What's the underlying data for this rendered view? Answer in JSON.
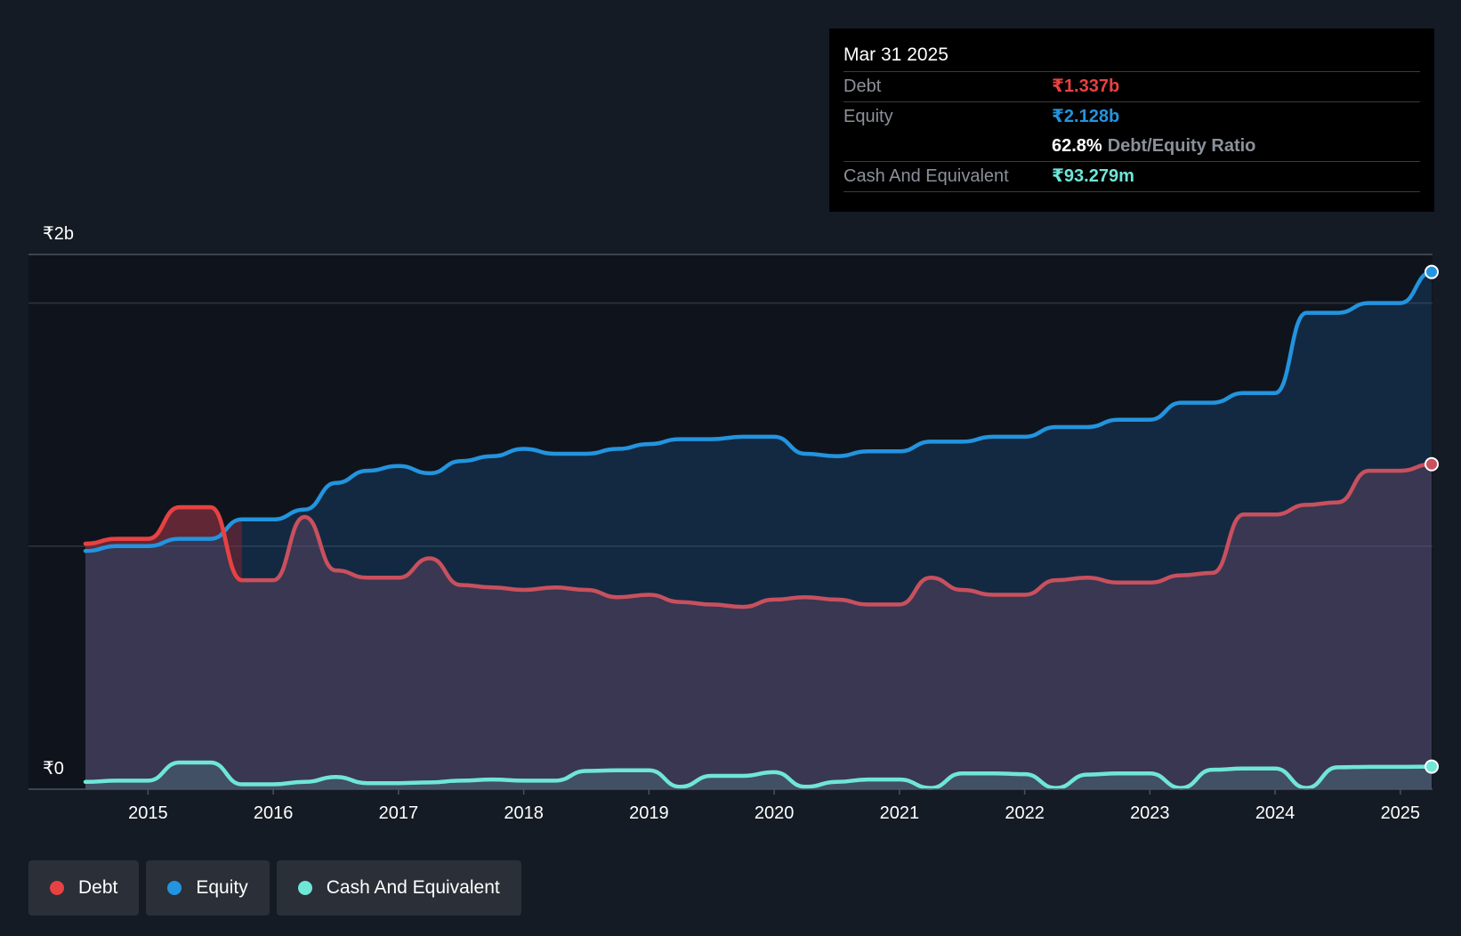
{
  "colors": {
    "background": "#151b24",
    "debt": "#e84142",
    "equity": "#2394df",
    "cash": "#6fe6d6"
  },
  "tooltip": {
    "date": "Mar 31 2025",
    "debt_label": "Debt",
    "debt_value": "₹1.337b",
    "equity_label": "Equity",
    "equity_value": "₹2.128b",
    "ratio_value": "62.8%",
    "ratio_label": "Debt/Equity Ratio",
    "cash_label": "Cash And Equivalent",
    "cash_value": "₹93.279m"
  },
  "legend": [
    {
      "label": "Debt",
      "color": "#e84142"
    },
    {
      "label": "Equity",
      "color": "#2394df"
    },
    {
      "label": "Cash And Equivalent",
      "color": "#6fe6d6"
    }
  ],
  "chart_data": {
    "type": "area",
    "y_unit": "₹ billions",
    "ylim": [
      0,
      2.2
    ],
    "xlim": [
      2014.5,
      2025.25
    ],
    "y_tick_labels": [
      {
        "value": 2.2,
        "label": "₹2b"
      },
      {
        "value": 0,
        "label": "₹0"
      }
    ],
    "gridlines": [
      2.0,
      1.0
    ],
    "x_ticks": [
      "2015",
      "2016",
      "2017",
      "2018",
      "2019",
      "2020",
      "2021",
      "2022",
      "2023",
      "2024",
      "2025"
    ],
    "series": [
      {
        "name": "Debt",
        "points": [
          [
            2014.5,
            1.01
          ],
          [
            2014.75,
            1.03
          ],
          [
            2015.0,
            1.03
          ],
          [
            2015.25,
            1.16
          ],
          [
            2015.5,
            1.16
          ],
          [
            2015.75,
            0.86
          ],
          [
            2016.0,
            0.86
          ],
          [
            2016.25,
            1.12
          ],
          [
            2016.5,
            0.9
          ],
          [
            2016.75,
            0.87
          ],
          [
            2017.0,
            0.87
          ],
          [
            2017.25,
            0.95
          ],
          [
            2017.5,
            0.84
          ],
          [
            2017.75,
            0.83
          ],
          [
            2018.0,
            0.82
          ],
          [
            2018.25,
            0.83
          ],
          [
            2018.5,
            0.82
          ],
          [
            2018.75,
            0.79
          ],
          [
            2019.0,
            0.8
          ],
          [
            2019.25,
            0.77
          ],
          [
            2019.5,
            0.76
          ],
          [
            2019.75,
            0.75
          ],
          [
            2020.0,
            0.78
          ],
          [
            2020.25,
            0.79
          ],
          [
            2020.5,
            0.78
          ],
          [
            2020.75,
            0.76
          ],
          [
            2021.0,
            0.76
          ],
          [
            2021.25,
            0.87
          ],
          [
            2021.5,
            0.82
          ],
          [
            2021.75,
            0.8
          ],
          [
            2022.0,
            0.8
          ],
          [
            2022.25,
            0.86
          ],
          [
            2022.5,
            0.87
          ],
          [
            2022.75,
            0.85
          ],
          [
            2023.0,
            0.85
          ],
          [
            2023.25,
            0.88
          ],
          [
            2023.5,
            0.89
          ],
          [
            2023.75,
            1.13
          ],
          [
            2024.0,
            1.13
          ],
          [
            2024.25,
            1.17
          ],
          [
            2024.5,
            1.18
          ],
          [
            2024.75,
            1.31
          ],
          [
            2025.0,
            1.31
          ],
          [
            2025.25,
            1.337
          ]
        ]
      },
      {
        "name": "Equity",
        "points": [
          [
            2014.5,
            0.98
          ],
          [
            2014.75,
            1.0
          ],
          [
            2015.0,
            1.0
          ],
          [
            2015.25,
            1.03
          ],
          [
            2015.5,
            1.03
          ],
          [
            2015.75,
            1.11
          ],
          [
            2016.0,
            1.11
          ],
          [
            2016.25,
            1.15
          ],
          [
            2016.5,
            1.26
          ],
          [
            2016.75,
            1.31
          ],
          [
            2017.0,
            1.33
          ],
          [
            2017.25,
            1.3
          ],
          [
            2017.5,
            1.35
          ],
          [
            2017.75,
            1.37
          ],
          [
            2018.0,
            1.4
          ],
          [
            2018.25,
            1.38
          ],
          [
            2018.5,
            1.38
          ],
          [
            2018.75,
            1.4
          ],
          [
            2019.0,
            1.42
          ],
          [
            2019.25,
            1.44
          ],
          [
            2019.5,
            1.44
          ],
          [
            2019.75,
            1.45
          ],
          [
            2020.0,
            1.45
          ],
          [
            2020.25,
            1.38
          ],
          [
            2020.5,
            1.37
          ],
          [
            2020.75,
            1.39
          ],
          [
            2021.0,
            1.39
          ],
          [
            2021.25,
            1.43
          ],
          [
            2021.5,
            1.43
          ],
          [
            2021.75,
            1.45
          ],
          [
            2022.0,
            1.45
          ],
          [
            2022.25,
            1.49
          ],
          [
            2022.5,
            1.49
          ],
          [
            2022.75,
            1.52
          ],
          [
            2023.0,
            1.52
          ],
          [
            2023.25,
            1.59
          ],
          [
            2023.5,
            1.59
          ],
          [
            2023.75,
            1.63
          ],
          [
            2024.0,
            1.63
          ],
          [
            2024.25,
            1.96
          ],
          [
            2024.5,
            1.96
          ],
          [
            2024.75,
            2.0
          ],
          [
            2025.0,
            2.0
          ],
          [
            2025.25,
            2.128
          ]
        ]
      },
      {
        "name": "Cash And Equivalent",
        "points": [
          [
            2014.5,
            0.03
          ],
          [
            2014.75,
            0.035
          ],
          [
            2015.0,
            0.035
          ],
          [
            2015.25,
            0.11
          ],
          [
            2015.5,
            0.11
          ],
          [
            2015.75,
            0.02
          ],
          [
            2016.0,
            0.02
          ],
          [
            2016.25,
            0.03
          ],
          [
            2016.5,
            0.05
          ],
          [
            2016.75,
            0.025
          ],
          [
            2017.0,
            0.025
          ],
          [
            2017.25,
            0.028
          ],
          [
            2017.5,
            0.035
          ],
          [
            2017.75,
            0.04
          ],
          [
            2018.0,
            0.035
          ],
          [
            2018.25,
            0.035
          ],
          [
            2018.5,
            0.075
          ],
          [
            2018.75,
            0.078
          ],
          [
            2019.0,
            0.078
          ],
          [
            2019.25,
            0.01
          ],
          [
            2019.5,
            0.055
          ],
          [
            2019.75,
            0.055
          ],
          [
            2020.0,
            0.07
          ],
          [
            2020.25,
            0.01
          ],
          [
            2020.5,
            0.03
          ],
          [
            2020.75,
            0.04
          ],
          [
            2021.0,
            0.04
          ],
          [
            2021.25,
            0.005
          ],
          [
            2021.5,
            0.065
          ],
          [
            2021.75,
            0.065
          ],
          [
            2022.0,
            0.062
          ],
          [
            2022.25,
            0.005
          ],
          [
            2022.5,
            0.06
          ],
          [
            2022.75,
            0.065
          ],
          [
            2023.0,
            0.065
          ],
          [
            2023.25,
            0.005
          ],
          [
            2023.5,
            0.08
          ],
          [
            2023.75,
            0.085
          ],
          [
            2024.0,
            0.085
          ],
          [
            2024.25,
            0.005
          ],
          [
            2024.5,
            0.09
          ],
          [
            2024.75,
            0.092
          ],
          [
            2025.0,
            0.092
          ],
          [
            2025.25,
            0.093
          ]
        ]
      }
    ]
  }
}
